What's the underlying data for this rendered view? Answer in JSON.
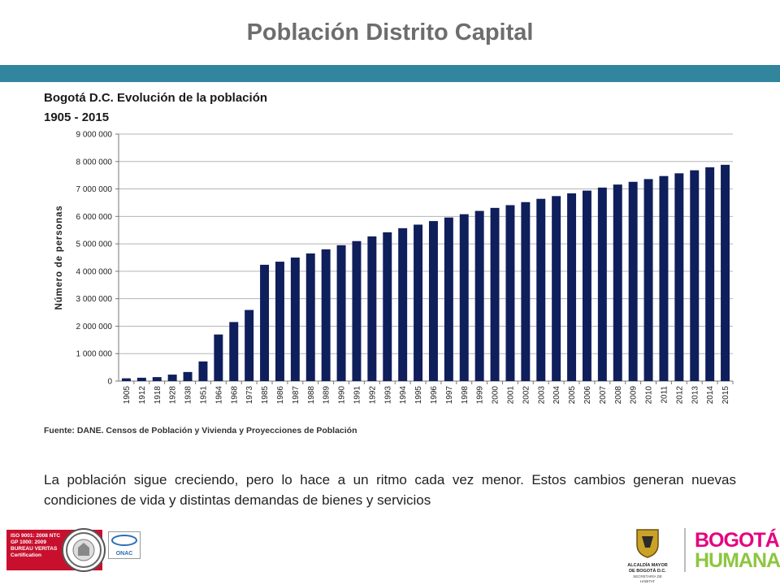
{
  "page": {
    "title": "Población Distrito Capital",
    "caption": "La población sigue creciendo, pero lo hace a un ritmo cada vez menor. Estos cambios generan nuevas condiciones de vida y distintas demandas de bienes y servicios"
  },
  "chart_data": {
    "type": "bar",
    "title": "Bogotá D.C. Evolución de la población",
    "subtitle": "1905 - 2015",
    "ylabel": "Número de personas",
    "xlabel": "",
    "ylim": [
      0,
      9000000
    ],
    "yticks": [
      "0",
      "1 000 000",
      "2 000 000",
      "3 000 000",
      "4 000 000",
      "5 000 000",
      "6 000 000",
      "7 000 000",
      "8 000 000",
      "9 000 000"
    ],
    "grid": true,
    "bar_color": "#0f1f5c",
    "categories": [
      "1905",
      "1912",
      "1918",
      "1928",
      "1938",
      "1951",
      "1964",
      "1968",
      "1973",
      "1985",
      "1986",
      "1987",
      "1988",
      "1989",
      "1990",
      "1991",
      "1992",
      "1993",
      "1994",
      "1995",
      "1996",
      "1997",
      "1998",
      "1999",
      "2000",
      "2001",
      "2002",
      "2003",
      "2004",
      "2005",
      "2006",
      "2007",
      "2008",
      "2009",
      "2010",
      "2011",
      "2012",
      "2013",
      "2014",
      "2015"
    ],
    "values": [
      100000,
      121000,
      144000,
      235000,
      330000,
      715000,
      1697000,
      2150000,
      2590000,
      4237000,
      4350000,
      4500000,
      4650000,
      4800000,
      4950000,
      5100000,
      5270000,
      5420000,
      5570000,
      5700000,
      5830000,
      5960000,
      6080000,
      6200000,
      6310000,
      6410000,
      6520000,
      6640000,
      6740000,
      6840000,
      6940000,
      7050000,
      7160000,
      7260000,
      7360000,
      7470000,
      7570000,
      7680000,
      7790000,
      7880000
    ],
    "source": "Fuente: DANE.  Censos de Población  y Vivienda y Proyecciones de Población"
  },
  "footer": {
    "iso_text": "ISO 9001: 2008 NTC GP 1000: 2009 BUREAU VERITAS Certification",
    "onac_label": "ONAC",
    "alcaldia_label": "ALCALDÍA MAYOR DE BOGOTÁ D.C.",
    "secretaria_label": "SECRETARÍA DE HÁBITAT",
    "brand_line1": "BOGOTÁ",
    "brand_line2": "HUMANA",
    "brand_pink": "#e6007e",
    "brand_green": "#8dc63f",
    "band_color": "#31859c"
  }
}
